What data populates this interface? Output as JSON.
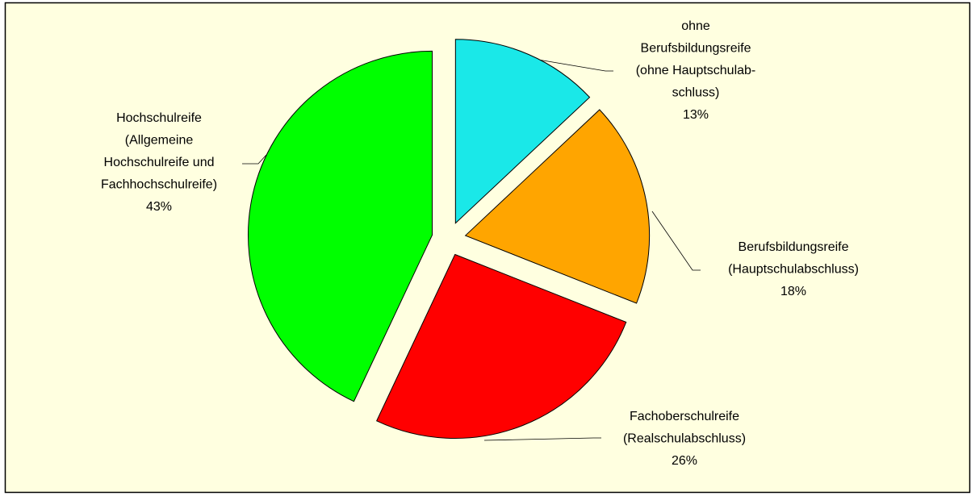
{
  "chart_data": {
    "type": "pie",
    "categories": [
      [
        "ohne",
        "Berufsbildungsreife",
        "(ohne Hauptschulab-",
        "schluss)"
      ],
      [
        "Berufsbildungsreife",
        "(Hauptschulabschluss)"
      ],
      [
        "Fachoberschulreife",
        "(Realschulabschluss)"
      ],
      [
        "Hochschulreife",
        "(Allgemeine",
        "Hochschulreife und",
        "Fachhochschulreife)"
      ]
    ],
    "values": [
      13,
      18,
      26,
      43
    ],
    "value_labels": [
      "13%",
      "18%",
      "26%",
      "43%"
    ],
    "colors": [
      "#1ae8e8",
      "#ffa500",
      "#ff0000",
      "#00ff00"
    ],
    "exploded": true
  }
}
